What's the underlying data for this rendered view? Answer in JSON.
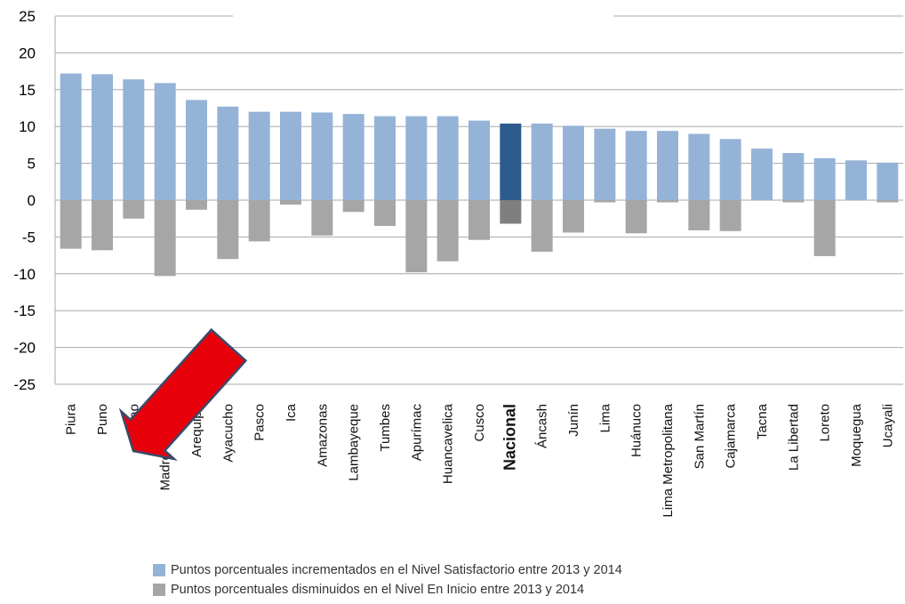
{
  "chart_data": {
    "type": "bar",
    "ylim": [
      -25,
      25
    ],
    "yticks": [
      25,
      20,
      15,
      10,
      5,
      0,
      -5,
      -10,
      -15,
      -20,
      -25
    ],
    "grid": true,
    "legend_position": "bottom",
    "categories": [
      "Piura",
      "Puno",
      "Callao",
      "Madre de Dios",
      "Arequipa",
      "Ayacucho",
      "Pasco",
      "Ica",
      "Amazonas",
      "Lambayeque",
      "Tumbes",
      "Apurímac",
      "Huancavelica",
      "Cusco",
      "Nacional",
      "Áncash",
      "Junín",
      "Lima",
      "Huánuco",
      "Lima Metropolitana",
      "San Martín",
      "Cajamarca",
      "Tacna",
      "La Libertad",
      "Loreto",
      "Moquegua",
      "Ucayali"
    ],
    "highlight_category": "Nacional",
    "series": [
      {
        "name": "Puntos porcentuales incrementados en el Nivel Satisfactorio entre 2013 y 2014",
        "color": "#95b3d7",
        "highlight_color": "#2e5b8e",
        "values": [
          17.2,
          17.1,
          16.4,
          15.9,
          13.6,
          12.7,
          12.0,
          12.0,
          11.9,
          11.7,
          11.4,
          11.4,
          11.4,
          10.8,
          10.4,
          10.4,
          10.1,
          9.7,
          9.4,
          9.4,
          9.0,
          8.3,
          7.0,
          6.4,
          5.7,
          5.4,
          5.1
        ]
      },
      {
        "name": "Puntos porcentuales disminuidos en el Nivel En Inicio entre 2013 y 2014",
        "color": "#a6a6a6",
        "highlight_color": "#7f7f7f",
        "values": [
          -6.6,
          -6.8,
          -2.5,
          -10.3,
          -1.3,
          -8.0,
          -5.6,
          -0.6,
          -4.8,
          -1.6,
          -3.5,
          -9.8,
          -8.3,
          -5.4,
          -3.2,
          -7.0,
          -4.4,
          -0.3,
          -4.5,
          -0.3,
          -4.1,
          -4.2,
          0,
          -0.3,
          -7.6,
          0,
          -0.3
        ]
      }
    ]
  },
  "annotation": {
    "icon": "red-arrow-icon",
    "color": "#e8000b",
    "target": "Callao"
  }
}
